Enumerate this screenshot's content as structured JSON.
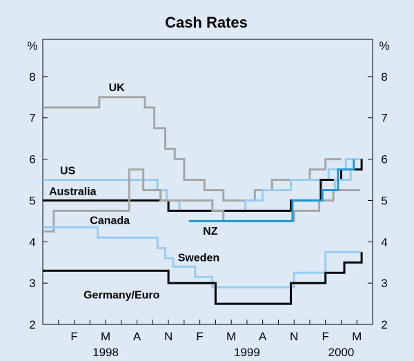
{
  "chart_data": {
    "type": "line",
    "step": true,
    "title": "Cash Rates",
    "ylabel_left": "%",
    "ylabel_right": "%",
    "ylim": [
      2,
      8.9
    ],
    "yticks": [
      2,
      3,
      4,
      5,
      6,
      7,
      8
    ],
    "xlim": [
      0,
      21
    ],
    "x_unit": "months since 1 Dec 1997",
    "month_ticks": [
      {
        "label": "F",
        "x": 2
      },
      {
        "label": "M",
        "x": 4
      },
      {
        "label": "A",
        "x": 6
      },
      {
        "label": "N",
        "x": 8
      },
      {
        "label": "F",
        "x": 10
      },
      {
        "label": "M",
        "x": 12
      },
      {
        "label": "A",
        "x": 14
      },
      {
        "label": "N",
        "x": 16
      },
      {
        "label": "F",
        "x": 18
      },
      {
        "label": "M",
        "x": 20
      }
    ],
    "year_labels": [
      {
        "label": "1998",
        "x": 4
      },
      {
        "label": "1999",
        "x": 13
      },
      {
        "label": "2000",
        "x": 19
      }
    ],
    "series": [
      {
        "name": "UK",
        "color": "#a6a6a6",
        "points": [
          [
            0,
            7.25
          ],
          [
            3.6,
            7.25
          ],
          [
            3.6,
            7.5
          ],
          [
            6.5,
            7.5
          ],
          [
            6.5,
            7.25
          ],
          [
            7.1,
            7.25
          ],
          [
            7.1,
            6.75
          ],
          [
            7.8,
            6.75
          ],
          [
            7.8,
            6.25
          ],
          [
            8.4,
            6.25
          ],
          [
            8.4,
            6.0
          ],
          [
            9.0,
            6.0
          ],
          [
            9.0,
            5.5
          ],
          [
            10.3,
            5.5
          ],
          [
            10.3,
            5.25
          ],
          [
            11.5,
            5.25
          ],
          [
            11.5,
            5.0
          ],
          [
            13.5,
            5.0
          ],
          [
            13.5,
            5.25
          ],
          [
            14.6,
            5.25
          ],
          [
            14.6,
            5.5
          ],
          [
            17.0,
            5.5
          ],
          [
            17.0,
            5.75
          ],
          [
            18.0,
            5.75
          ],
          [
            18.0,
            6.0
          ],
          [
            19.0,
            6.0
          ]
        ]
      },
      {
        "name": "US",
        "color": "#99ccf0",
        "points": [
          [
            0,
            5.5
          ],
          [
            7.3,
            5.5
          ],
          [
            7.3,
            5.25
          ],
          [
            7.9,
            5.25
          ],
          [
            7.9,
            5.0
          ],
          [
            8.7,
            5.0
          ],
          [
            8.7,
            4.75
          ],
          [
            12.9,
            4.75
          ],
          [
            12.9,
            5.0
          ],
          [
            14.0,
            5.0
          ],
          [
            14.0,
            5.25
          ],
          [
            15.8,
            5.25
          ],
          [
            15.8,
            5.5
          ],
          [
            18.2,
            5.5
          ],
          [
            18.2,
            5.75
          ],
          [
            19.3,
            5.75
          ],
          [
            19.3,
            6.0
          ],
          [
            20.4,
            6.0
          ]
        ]
      },
      {
        "name": "Australia",
        "color": "#000000",
        "points": [
          [
            0,
            5.0
          ],
          [
            8.0,
            5.0
          ],
          [
            8.0,
            4.75
          ],
          [
            15.8,
            4.75
          ],
          [
            15.8,
            5.0
          ],
          [
            17.7,
            5.0
          ],
          [
            17.7,
            5.5
          ],
          [
            19.0,
            5.5
          ],
          [
            19.0,
            5.75
          ],
          [
            20.3,
            5.75
          ],
          [
            20.3,
            6.0
          ]
        ]
      },
      {
        "name": "Canada",
        "color": "#a6a6a6",
        "points": [
          [
            0,
            4.25
          ],
          [
            0.7,
            4.25
          ],
          [
            0.7,
            4.75
          ],
          [
            5.5,
            4.75
          ],
          [
            5.5,
            5.75
          ],
          [
            6.4,
            5.75
          ],
          [
            6.4,
            5.25
          ],
          [
            7.5,
            5.25
          ],
          [
            7.5,
            5.0
          ],
          [
            10.8,
            5.0
          ],
          [
            10.8,
            4.75
          ],
          [
            11.5,
            4.75
          ],
          [
            11.5,
            4.5
          ],
          [
            16.0,
            4.5
          ],
          [
            16.0,
            4.75
          ],
          [
            17.6,
            4.75
          ],
          [
            17.6,
            5.0
          ],
          [
            18.5,
            5.0
          ],
          [
            18.5,
            5.25
          ],
          [
            20.2,
            5.25
          ]
        ]
      },
      {
        "name": "Canada upper",
        "color": "#99ccf0",
        "points": [
          [
            17.8,
            5.0
          ],
          [
            17.8,
            5.25
          ],
          [
            18.6,
            5.25
          ],
          [
            18.6,
            5.5
          ],
          [
            19.6,
            5.5
          ],
          [
            19.6,
            5.75
          ]
        ]
      },
      {
        "name": "NZ",
        "color": "#1f97d3",
        "points": [
          [
            9.3,
            4.5
          ],
          [
            15.9,
            4.5
          ],
          [
            15.9,
            5.0
          ],
          [
            17.8,
            5.0
          ],
          [
            17.8,
            5.25
          ],
          [
            18.8,
            5.25
          ],
          [
            18.8,
            5.75
          ],
          [
            19.8,
            5.75
          ],
          [
            19.8,
            6.0
          ]
        ]
      },
      {
        "name": "Sweden",
        "color": "#99ccf0",
        "points": [
          [
            0,
            4.35
          ],
          [
            3.5,
            4.35
          ],
          [
            3.5,
            4.1
          ],
          [
            7.3,
            4.1
          ],
          [
            7.3,
            3.85
          ],
          [
            7.8,
            3.85
          ],
          [
            7.8,
            3.6
          ],
          [
            8.3,
            3.6
          ],
          [
            8.3,
            3.4
          ],
          [
            9.7,
            3.4
          ],
          [
            9.7,
            3.15
          ],
          [
            10.8,
            3.15
          ],
          [
            10.8,
            2.9
          ],
          [
            16.0,
            2.9
          ],
          [
            16.0,
            3.25
          ],
          [
            18.0,
            3.25
          ],
          [
            18.0,
            3.75
          ],
          [
            20.3,
            3.75
          ]
        ]
      },
      {
        "name": "Germany/Euro",
        "color": "#000000",
        "points": [
          [
            0,
            3.3
          ],
          [
            8.0,
            3.3
          ],
          [
            8.0,
            3.0
          ],
          [
            11.0,
            3.0
          ],
          [
            11.0,
            2.5
          ],
          [
            15.8,
            2.5
          ],
          [
            15.8,
            3.0
          ],
          [
            18.0,
            3.0
          ],
          [
            18.0,
            3.25
          ],
          [
            19.2,
            3.25
          ],
          [
            19.2,
            3.5
          ],
          [
            20.3,
            3.5
          ],
          [
            20.3,
            3.75
          ]
        ]
      }
    ],
    "labels": [
      {
        "text": "UK",
        "x": 4.2,
        "y": 7.65
      },
      {
        "text": "US",
        "x": 1.1,
        "y": 5.63
      },
      {
        "text": "Australia",
        "x": 0.4,
        "y": 5.13
      },
      {
        "text": "Canada",
        "x": 3.0,
        "y": 4.43
      },
      {
        "text": "NZ",
        "x": 10.2,
        "y": 4.17
      },
      {
        "text": "Sweden",
        "x": 8.6,
        "y": 3.53
      },
      {
        "text": "Germany/Euro",
        "x": 2.6,
        "y": 2.63
      }
    ]
  }
}
